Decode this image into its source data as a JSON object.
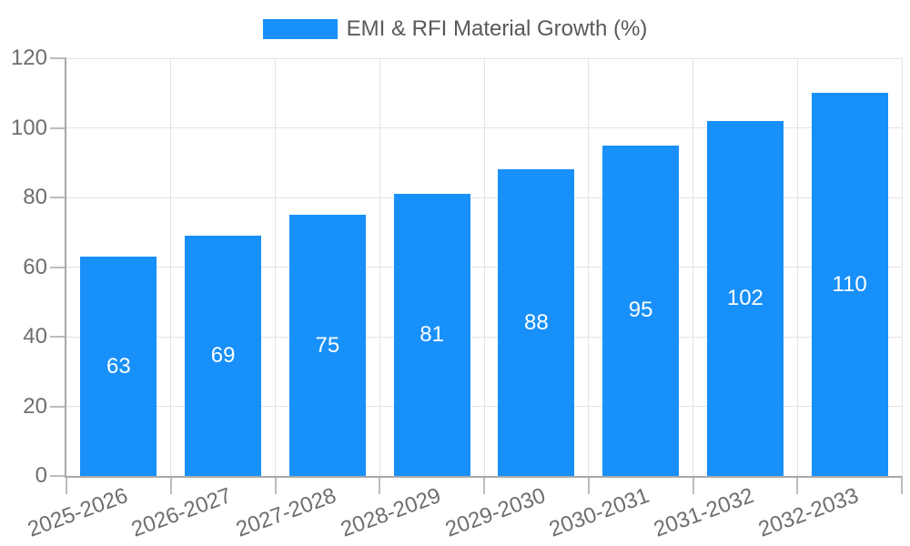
{
  "legend": {
    "swatch_color": "#1890fa",
    "label": "EMI & RFI Material Growth (%)"
  },
  "chart_data": {
    "type": "bar",
    "title": "EMI & RFI Material Growth (%)",
    "categories": [
      "2025-2026",
      "2026-2027",
      "2027-2028",
      "2028-2029",
      "2029-2030",
      "2030-2031",
      "2031-2032",
      "2032-2033"
    ],
    "series": [
      {
        "name": "EMI & RFI Material Growth (%)",
        "values": [
          63,
          69,
          75,
          81,
          88,
          95,
          102,
          110
        ]
      }
    ],
    "value_labels": [
      63,
      69,
      75,
      81,
      88,
      95,
      102,
      110
    ],
    "xlabel": "",
    "ylabel": "",
    "ylim": [
      0,
      120
    ],
    "y_ticks": [
      0,
      20,
      40,
      60,
      80,
      100,
      120
    ],
    "grid": "horizontal-and-vertical",
    "legend_position": "top-center",
    "x_label_rotation_deg": -20,
    "value_label_position": "inside-center"
  },
  "colors": {
    "background": "#ffffff",
    "bar": "#1890fa",
    "grid": "#e3e3e3",
    "axis": "#a8a8a8",
    "tick": "#bdbdbd",
    "tick_label": "#6e6e6e",
    "legend_text": "#595959",
    "value_label": "#ffffff"
  }
}
